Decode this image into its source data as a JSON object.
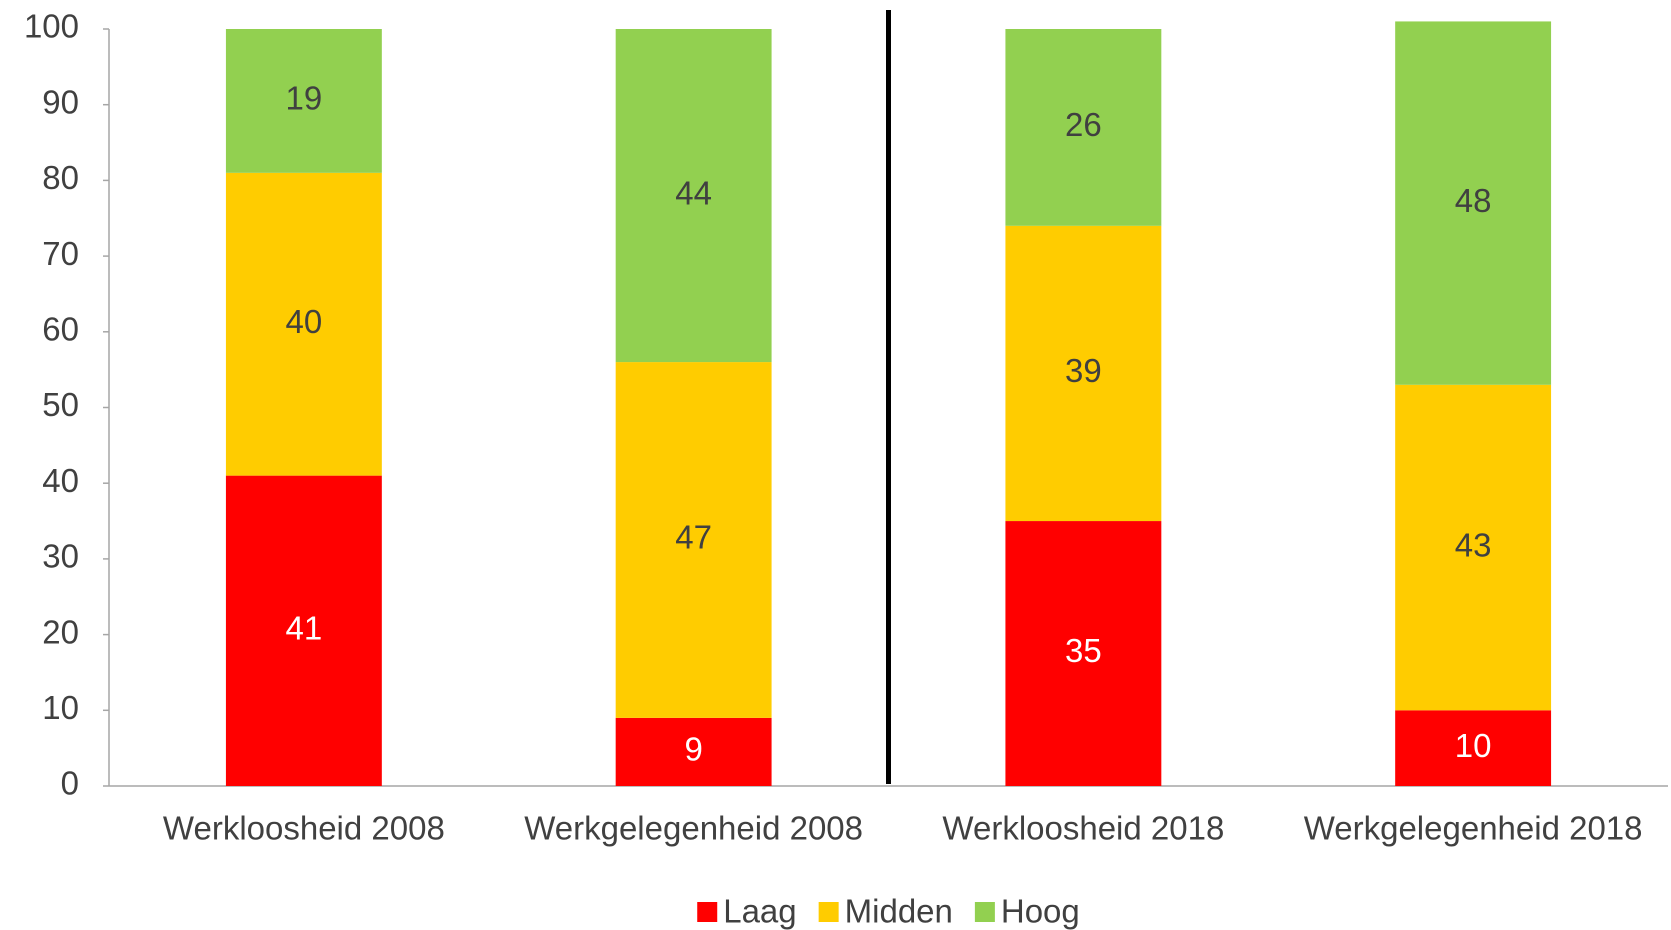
{
  "chart_data": {
    "type": "stacked_bar",
    "categories": [
      "Werkloosheid 2008",
      "Werkgelegenheid 2008",
      "Werkloosheid 2018",
      "Werkgelegenheid 2018"
    ],
    "series": [
      {
        "name": "Laag",
        "color": "#ff0000",
        "values": [
          41,
          9,
          35,
          10
        ]
      },
      {
        "name": "Midden",
        "color": "#ffcc00",
        "values": [
          40,
          47,
          39,
          43
        ]
      },
      {
        "name": "Hoog",
        "color": "#92d050",
        "values": [
          19,
          44,
          26,
          48
        ]
      }
    ],
    "ylim": [
      0,
      100
    ],
    "yticks": [
      0,
      10,
      20,
      30,
      40,
      50,
      60,
      70,
      80,
      90,
      100
    ],
    "legend": "bottom",
    "grid": false
  }
}
